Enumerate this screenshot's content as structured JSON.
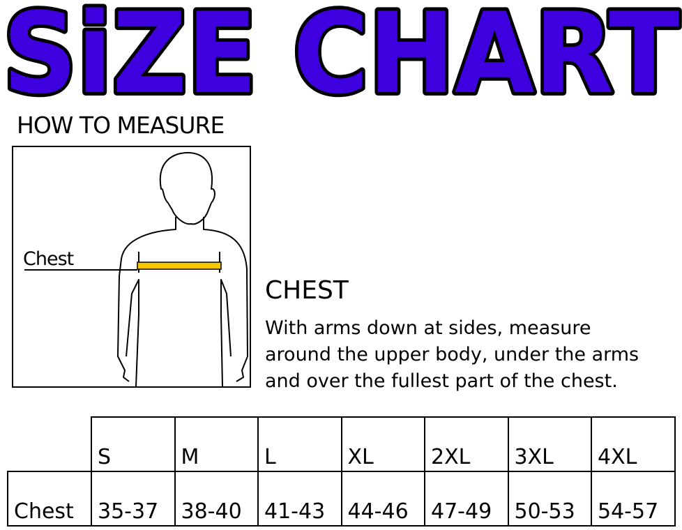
{
  "title": "SiZE CHART",
  "title_colors": {
    "fill": "#3f00e0",
    "outline": "#000000"
  },
  "how_to_measure": "HOW TO MEASURE",
  "figure": {
    "chest_label": "Chest",
    "tape_color": "#f5c800"
  },
  "instructions": {
    "heading": "CHEST",
    "lines": [
      "With arms down at sides, measure",
      "around the upper body, under the arms",
      "and over the fullest part of the chest."
    ]
  },
  "table": {
    "sizes": [
      "S",
      "M",
      "L",
      "XL",
      "2XL",
      "3XL",
      "4XL"
    ],
    "row_label": "Chest",
    "values": [
      "35-37",
      "38-40",
      "41-43",
      "44-46",
      "47-49",
      "50-53",
      "54-57"
    ]
  }
}
